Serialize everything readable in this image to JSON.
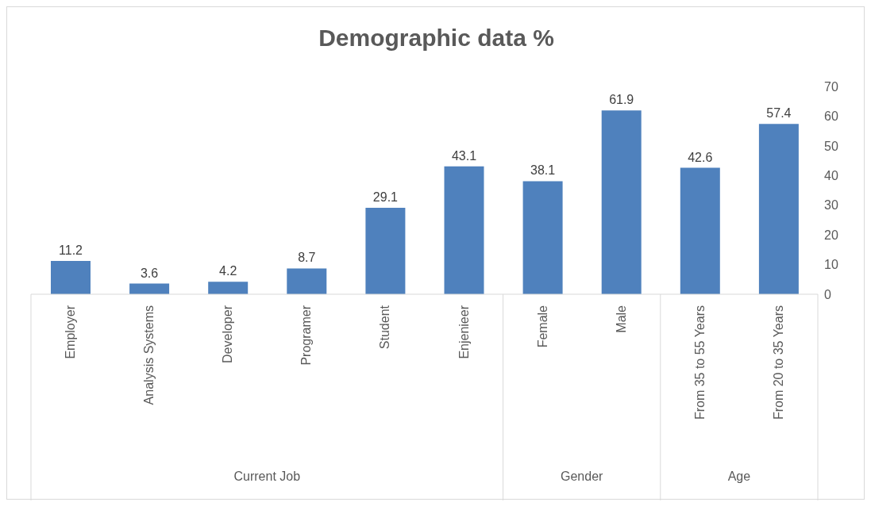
{
  "chart_data": {
    "type": "bar",
    "title": "Demographic data %",
    "categories": [
      "Employer",
      "Analysis Systems",
      "Developer",
      "Programer",
      "Student",
      "Enjenieer",
      "Female",
      "Male",
      "From 35 to 55 Years",
      "From 20 to 35 Years"
    ],
    "values": [
      11.2,
      3.6,
      4.2,
      8.7,
      29.1,
      43.1,
      38.1,
      61.9,
      42.6,
      57.4
    ],
    "color": "#4f81bd",
    "ylim": [
      0,
      70
    ],
    "yticks": [
      0,
      10,
      20,
      30,
      40,
      50,
      60,
      70
    ],
    "grid": false,
    "data_labels": true,
    "annotations": [
      "Current Job",
      "Gender",
      "Age"
    ]
  }
}
